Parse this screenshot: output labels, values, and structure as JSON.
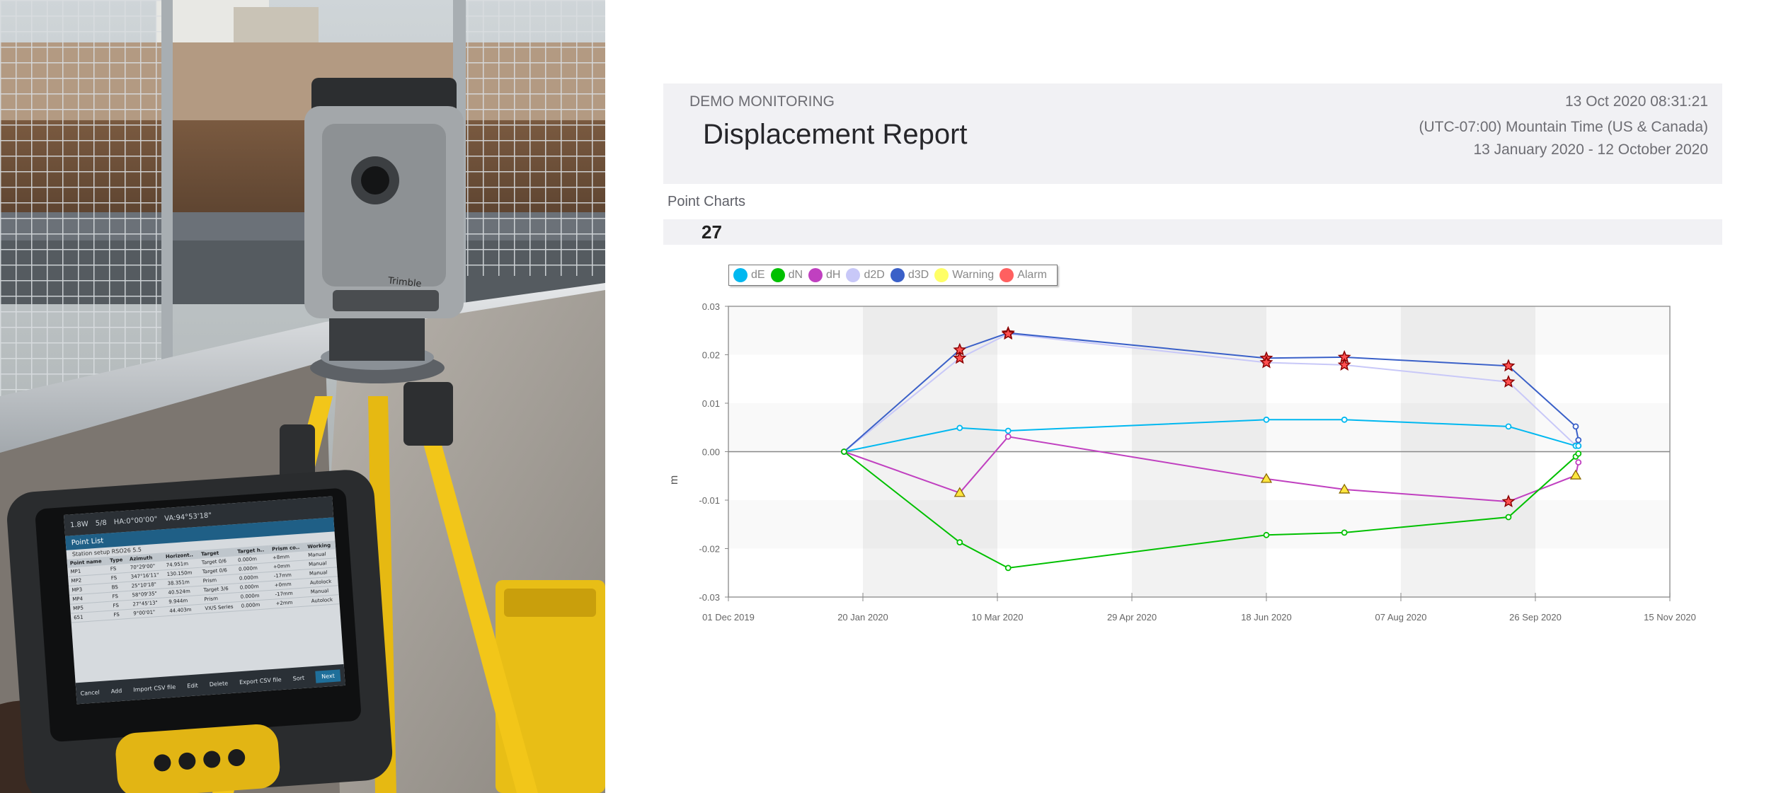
{
  "report": {
    "company": "DEMO MONITORING",
    "title": "Displacement Report",
    "datetime": "13 Oct 2020 08:31:21",
    "timezone": "(UTC-07:00) Mountain Time (US & Canada)",
    "range": "13 January 2020  -  12 October 2020",
    "section": "Point Charts",
    "point_id": "27"
  },
  "legend": [
    {
      "label": "dE",
      "color": "#00b8f0"
    },
    {
      "label": "dN",
      "color": "#00c000"
    },
    {
      "label": "dH",
      "color": "#c040c0"
    },
    {
      "label": "d2D",
      "color": "#c8c8f8"
    },
    {
      "label": "d3D",
      "color": "#3a60c8"
    },
    {
      "label": "Warning",
      "color": "#ffff66"
    },
    {
      "label": "Alarm",
      "color": "#ff6060"
    }
  ],
  "chart_data": {
    "type": "line",
    "xlabel": "",
    "ylabel": "m",
    "ylim": [
      -0.03,
      0.03
    ],
    "y_ticks": [
      "0.03",
      "0.02",
      "0.01",
      "0.00",
      "-0.01",
      "-0.02",
      "-0.03"
    ],
    "x_ticks": [
      "01 Dec 2019",
      "20 Jan 2020",
      "10 Mar 2020",
      "29 Apr 2020",
      "18 Jun 2020",
      "07 Aug 2020",
      "26 Sep 2020",
      "15 Nov 2020"
    ],
    "x_range": [
      "2019-12-01",
      "2020-11-15"
    ],
    "x": [
      "2020-01-13",
      "2020-02-25",
      "2020-03-14",
      "2020-06-18",
      "2020-07-17",
      "2020-09-16",
      "2020-10-11",
      "2020-10-12"
    ],
    "series": [
      {
        "name": "dE",
        "color": "#00b8f0",
        "values": [
          0.0,
          0.0049,
          0.0043,
          0.0066,
          0.0066,
          0.0052,
          0.0012,
          0.0012
        ]
      },
      {
        "name": "dN",
        "color": "#00c000",
        "values": [
          0.0,
          -0.0187,
          -0.024,
          -0.0172,
          -0.0167,
          -0.0135,
          -0.001,
          -0.0004
        ]
      },
      {
        "name": "dH",
        "color": "#c040c0",
        "values": [
          0.0,
          -0.0085,
          0.0031,
          -0.0056,
          -0.0078,
          -0.0103,
          -0.0049,
          -0.0022
        ]
      },
      {
        "name": "d2D",
        "color": "#c8c8f8",
        "values": [
          0.0,
          0.0193,
          0.0243,
          0.0184,
          0.0179,
          0.0144,
          0.0013,
          0.0012
        ]
      },
      {
        "name": "d3D",
        "color": "#3a60c8",
        "values": [
          0.0,
          0.021,
          0.0245,
          0.0193,
          0.0195,
          0.0177,
          0.0052,
          0.0024
        ]
      }
    ],
    "markers": [
      {
        "series": "d3D",
        "index": 1,
        "type": "Alarm"
      },
      {
        "series": "d3D",
        "index": 2,
        "type": "Alarm"
      },
      {
        "series": "d3D",
        "index": 3,
        "type": "Alarm"
      },
      {
        "series": "d3D",
        "index": 4,
        "type": "Alarm"
      },
      {
        "series": "d3D",
        "index": 5,
        "type": "Alarm"
      },
      {
        "series": "d2D",
        "index": 1,
        "type": "Alarm"
      },
      {
        "series": "d2D",
        "index": 2,
        "type": "Alarm"
      },
      {
        "series": "d2D",
        "index": 3,
        "type": "Alarm"
      },
      {
        "series": "d2D",
        "index": 4,
        "type": "Alarm"
      },
      {
        "series": "d2D",
        "index": 5,
        "type": "Alarm"
      },
      {
        "series": "dH",
        "index": 1,
        "type": "Warning"
      },
      {
        "series": "dH",
        "index": 3,
        "type": "Warning"
      },
      {
        "series": "dH",
        "index": 4,
        "type": "Warning"
      },
      {
        "series": "dH",
        "index": 5,
        "type": "Alarm"
      },
      {
        "series": "dH",
        "index": 6,
        "type": "Warning"
      }
    ],
    "grid": true,
    "legend_position": "top-left"
  },
  "photo": {
    "brand": "Trimble",
    "controller": {
      "status": [
        "1.8W",
        "5/8",
        "HA:0°00'00\"",
        "VA:94°53'18\""
      ],
      "title": "Point List",
      "station": "Station setup RSO26 5.5",
      "columns": [
        "Point name",
        "Type",
        "Azimuth",
        "Horizont..",
        "Target",
        "Target h..",
        "Prism co..",
        "Working"
      ],
      "rows": [
        [
          "MP1",
          "FS",
          "70°29'00\"",
          "74.951m",
          "Target 0/6",
          "0.000m",
          "+8mm",
          "Manual"
        ],
        [
          "MP2",
          "FS",
          "347°16'11\"",
          "130.150m",
          "Target 0/6",
          "0.000m",
          "+0mm",
          "Manual"
        ],
        [
          "MP3",
          "BS",
          "25°10'18\"",
          "38.351m",
          "Prism",
          "0.000m",
          "-17mm",
          "Manual"
        ],
        [
          "MP4",
          "FS",
          "58°09'35\"",
          "40.524m",
          "Target 3/6",
          "0.000m",
          "+0mm",
          "Autolock"
        ],
        [
          "MP5",
          "FS",
          "27°45'13\"",
          "9.944m",
          "Prism",
          "0.000m",
          "-17mm",
          "Manual"
        ],
        [
          "651",
          "FS",
          "9°00'01\"",
          "44.403m",
          "VX/S Series",
          "0.000m",
          "+2mm",
          "Autolock"
        ]
      ],
      "footer": [
        "Cancel",
        "Add",
        "Import CSV file",
        "Edit",
        "Delete",
        "Export CSV file",
        "Sort",
        "Next"
      ]
    }
  }
}
